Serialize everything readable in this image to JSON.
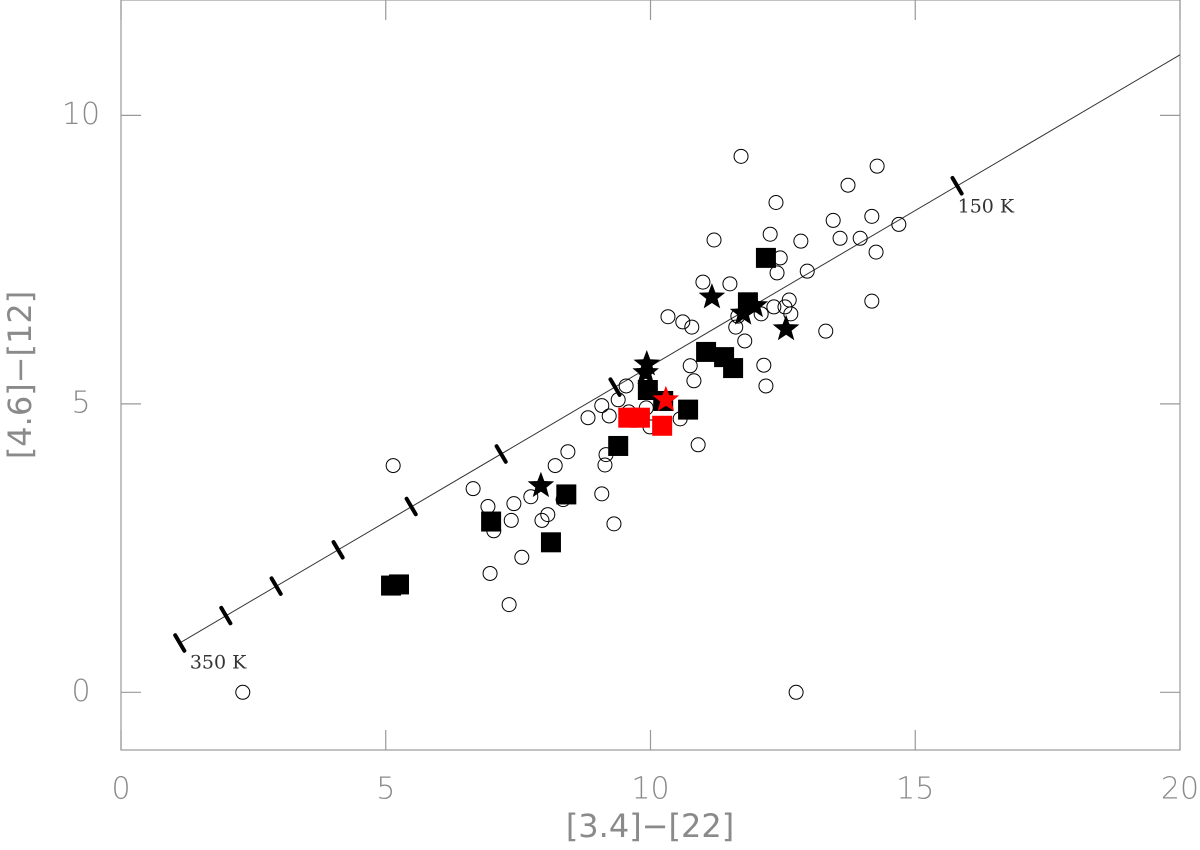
{
  "chart_data": {
    "type": "scatter",
    "x_label": "[3.4]−[22]",
    "y_label": "[4.6]−[12]",
    "xlim": [
      0,
      20
    ],
    "ylim": [
      -1,
      12
    ],
    "xticks": [
      0,
      5,
      10,
      15,
      20
    ],
    "yticks": [
      0,
      5,
      10
    ],
    "annotations": [
      {
        "text": "350 K",
        "x": 1.3,
        "y": 0.5
      },
      {
        "text": "150 K",
        "x": 15.8,
        "y": 8.4
      }
    ],
    "model_line": {
      "color": "#333333",
      "x": [
        1.1,
        20
      ],
      "y": [
        0.85,
        11.05
      ]
    },
    "temperature_marks": {
      "color": "#000000",
      "x": [
        1.11,
        1.98,
        2.93,
        4.1,
        5.48,
        7.18,
        9.33,
        15.79
      ],
      "y": [
        0.855,
        1.33,
        1.84,
        2.47,
        3.22,
        4.13,
        5.29,
        8.78
      ]
    },
    "series": [
      {
        "marker": "open-circle",
        "color": "#000000",
        "x": [
          2.3,
          5.14,
          6.65,
          6.93,
          6.97,
          7.04,
          7.33,
          7.37,
          7.42,
          7.57,
          7.74,
          7.95,
          8.06,
          8.2,
          8.35,
          8.44,
          8.82,
          9.08,
          9.08,
          9.14,
          9.16,
          9.22,
          9.31,
          9.39,
          9.54,
          9.59,
          10.33,
          10.61,
          10.78,
          10.75,
          10.82,
          10.9,
          10.99,
          11.2,
          11.5,
          11.61,
          11.65,
          11.71,
          11.78,
          12.09,
          12.14,
          12.18,
          12.26,
          12.33,
          12.37,
          12.39,
          12.45,
          12.54,
          12.62,
          12.65,
          12.75,
          12.84,
          12.96,
          13.31,
          13.45,
          13.58,
          13.73,
          13.96,
          14.18,
          14.18,
          14.26,
          14.28,
          14.69,
          9.92,
          9.99,
          10.56
        ],
        "y": [
          0,
          3.93,
          3.53,
          3.22,
          2.06,
          2.8,
          1.52,
          2.98,
          3.27,
          2.34,
          3.39,
          2.98,
          3.08,
          3.93,
          3.34,
          4.17,
          4.76,
          4.97,
          3.44,
          3.94,
          4.12,
          4.79,
          2.92,
          5.07,
          5.31,
          4.86,
          6.51,
          6.42,
          6.33,
          5.66,
          5.4,
          4.29,
          7.11,
          7.84,
          7.08,
          6.33,
          6.52,
          9.29,
          6.09,
          6.56,
          5.67,
          5.31,
          7.94,
          6.68,
          8.49,
          7.27,
          7.53,
          6.68,
          6.8,
          6.56,
          0,
          7.82,
          7.3,
          6.26,
          8.18,
          7.87,
          8.79,
          7.87,
          8.25,
          6.78,
          7.63,
          9.12,
          8.11,
          4.93,
          4.6,
          4.74
        ]
      },
      {
        "marker": "square",
        "color": "#000000",
        "x": [
          5.1,
          5.25,
          6.99,
          8.12,
          8.41,
          9.39,
          9.95,
          10.24,
          10.71,
          11.05,
          11.39,
          11.56,
          11.84,
          12.18
        ],
        "y": [
          1.85,
          1.87,
          2.96,
          2.6,
          3.43,
          4.27,
          5.24,
          5.05,
          4.9,
          5.9,
          5.81,
          5.62,
          6.76,
          7.53
        ]
      },
      {
        "marker": "star",
        "color": "#ff0000",
        "x": [
          10.29
        ],
        "y": [
          5.07
        ]
      },
      {
        "marker": "square",
        "color": "#ff0000",
        "x": [
          9.58,
          9.8,
          10.22
        ],
        "y": [
          4.76,
          4.76,
          4.62
        ]
      },
      {
        "marker": "star",
        "color": "#000000",
        "x": [
          7.93,
          9.93,
          9.91,
          11.16,
          11.75,
          12.56,
          11.97
        ],
        "y": [
          3.58,
          5.69,
          5.54,
          6.85,
          6.57,
          6.3,
          6.7
        ]
      }
    ]
  }
}
